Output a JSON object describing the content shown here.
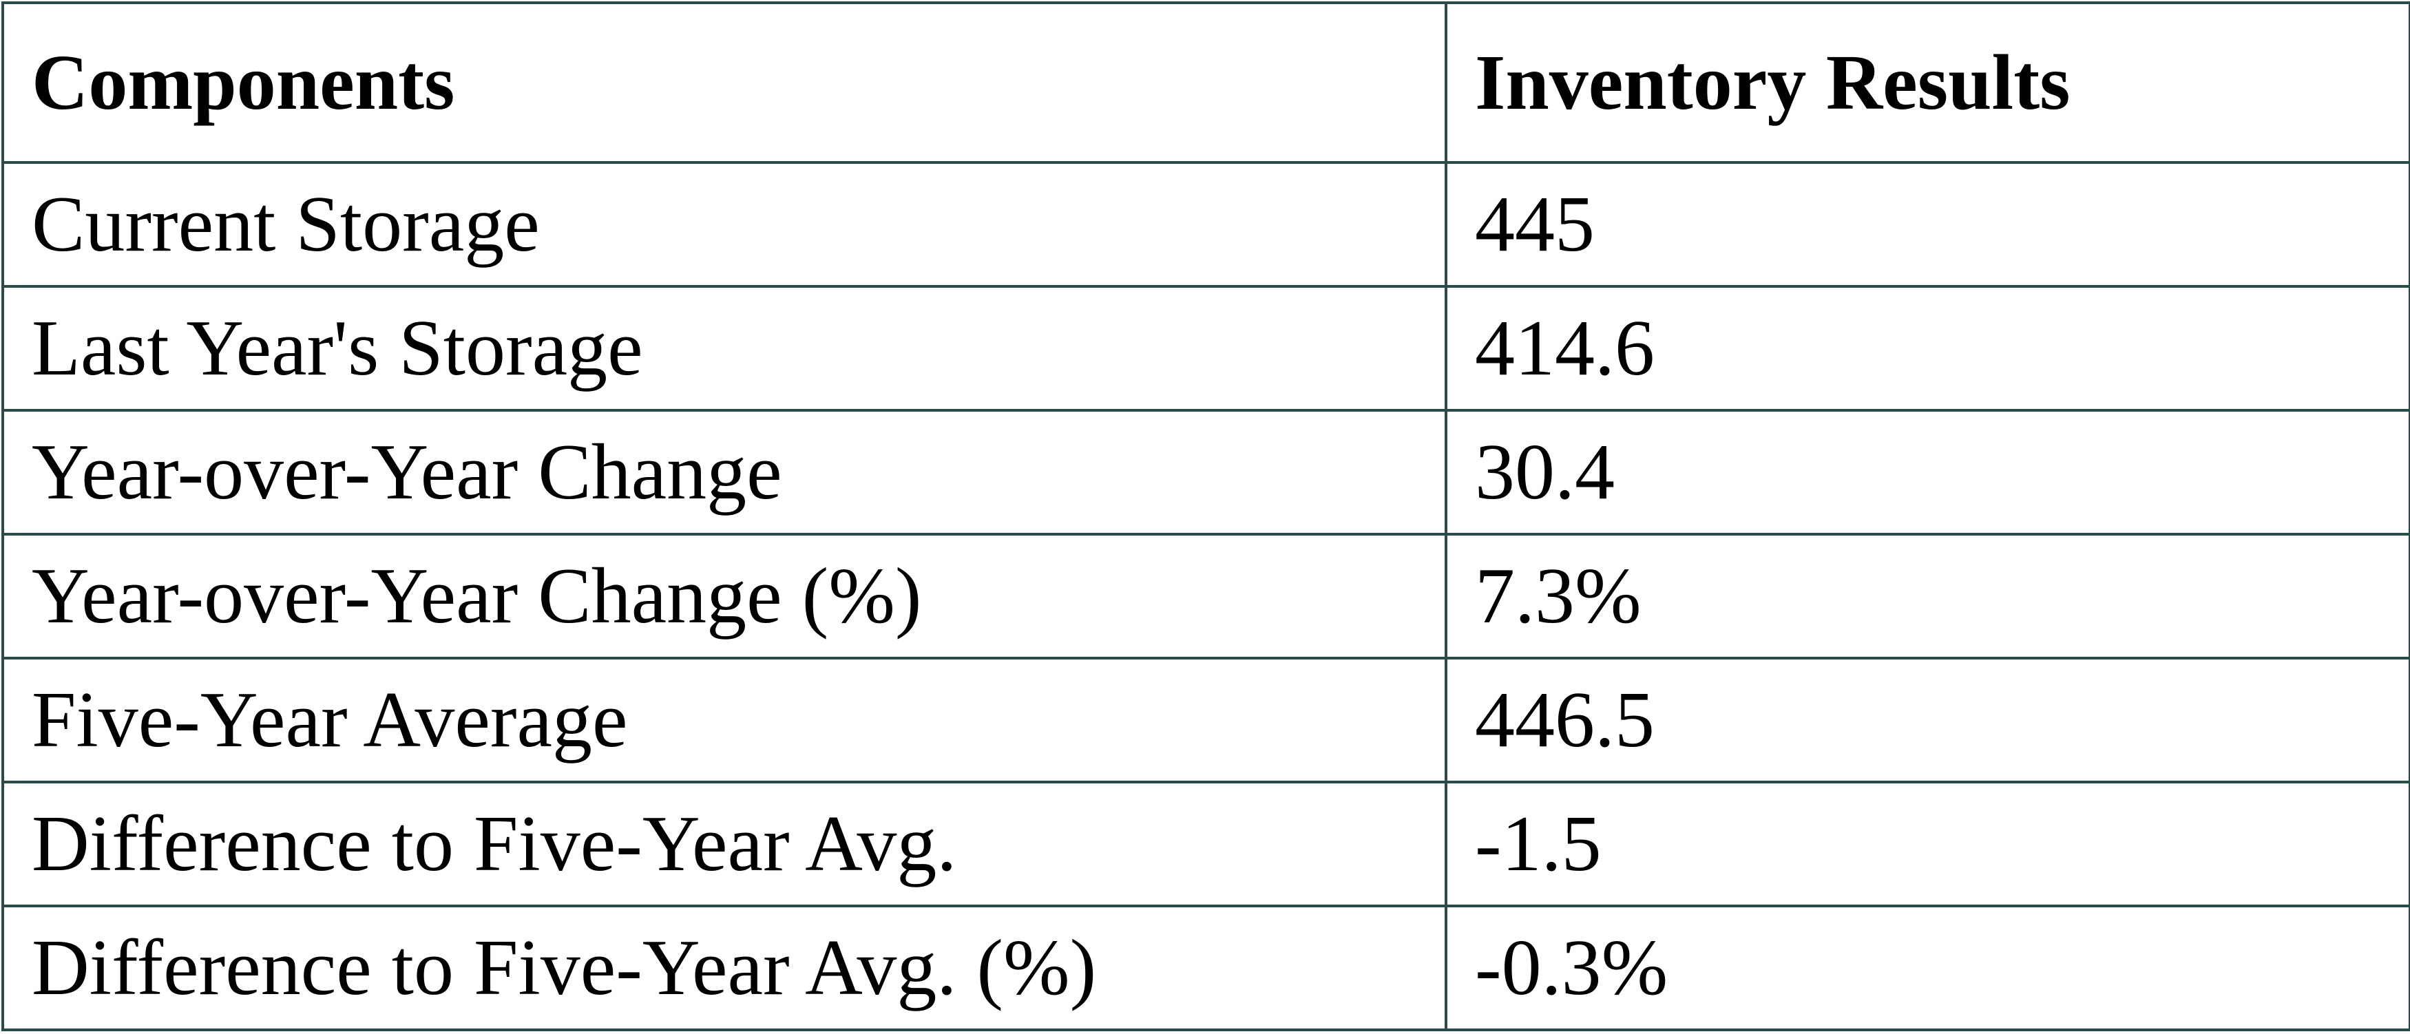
{
  "table": {
    "header": [
      "Components",
      "Inventory Results"
    ],
    "rows": [
      [
        "Current Storage",
        "445"
      ],
      [
        "Last Year's Storage",
        "414.6"
      ],
      [
        "Year-over-Year Change",
        "30.4"
      ],
      [
        "Year-over-Year Change (%)",
        "7.3%"
      ],
      [
        "Five-Year Average",
        "446.5"
      ],
      [
        "Difference to Five-Year Avg.",
        "-1.5"
      ],
      [
        "Difference to Five-Year Avg. (%)",
        "-0.3%"
      ]
    ]
  }
}
